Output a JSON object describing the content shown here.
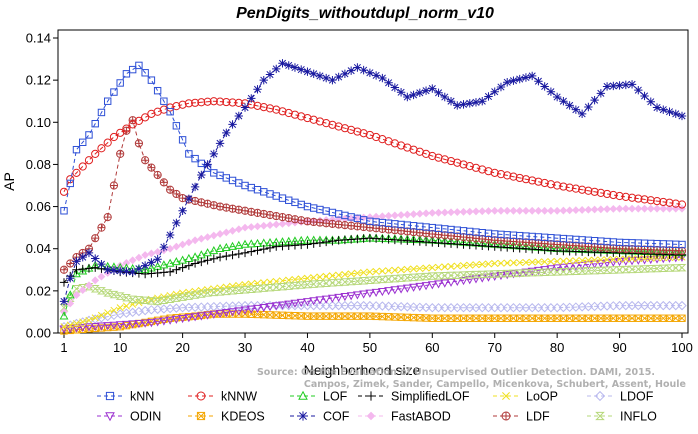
{
  "chart_data": {
    "type": "line",
    "title": "PenDigits_withoutdupl_norm_v10",
    "xlabel": "Neighborhood size",
    "ylabel": "AP",
    "xlim": [
      1,
      100
    ],
    "ylim": [
      0,
      0.14
    ],
    "x_ticks": [
      "1",
      "10",
      "20",
      "30",
      "40",
      "50",
      "60",
      "70",
      "80",
      "90",
      "100"
    ],
    "y_ticks": [
      "0.00",
      "0.02",
      "0.04",
      "0.06",
      "0.08",
      "0.10",
      "0.12",
      "0.14"
    ],
    "watermark": [
      "Source: On the Evaluation of Unsupervised Outlier Detection. DAMI, 2015.",
      "Campos, Zimek, Sander, Campello, Micenkova, Schubert, Assent, Houle"
    ],
    "series": [
      {
        "name": "kNN",
        "color": "#2d4fd6",
        "marker": "square",
        "dash": "4,3",
        "points": [
          [
            1,
            0.058
          ],
          [
            2,
            0.071
          ],
          [
            3,
            0.087
          ],
          [
            5,
            0.094
          ],
          [
            8,
            0.11
          ],
          [
            11,
            0.123
          ],
          [
            13,
            0.127
          ],
          [
            15,
            0.12
          ],
          [
            18,
            0.105
          ],
          [
            21,
            0.085
          ],
          [
            25,
            0.076
          ],
          [
            30,
            0.07
          ],
          [
            35,
            0.065
          ],
          [
            40,
            0.06
          ],
          [
            50,
            0.053
          ],
          [
            60,
            0.05
          ],
          [
            70,
            0.047
          ],
          [
            80,
            0.045
          ],
          [
            90,
            0.043
          ],
          [
            100,
            0.042
          ]
        ]
      },
      {
        "name": "kNNW",
        "color": "#e02020",
        "marker": "circle",
        "dash": "4,3",
        "points": [
          [
            1,
            0.067
          ],
          [
            2,
            0.073
          ],
          [
            4,
            0.079
          ],
          [
            6,
            0.085
          ],
          [
            9,
            0.093
          ],
          [
            12,
            0.099
          ],
          [
            15,
            0.104
          ],
          [
            18,
            0.107
          ],
          [
            21,
            0.109
          ],
          [
            25,
            0.11
          ],
          [
            30,
            0.109
          ],
          [
            35,
            0.106
          ],
          [
            40,
            0.102
          ],
          [
            50,
            0.094
          ],
          [
            60,
            0.084
          ],
          [
            70,
            0.076
          ],
          [
            80,
            0.07
          ],
          [
            90,
            0.065
          ],
          [
            100,
            0.061
          ]
        ]
      },
      {
        "name": "LOF",
        "color": "#22cc22",
        "marker": "triangle",
        "dash": "4,3",
        "points": [
          [
            1,
            0.008
          ],
          [
            3,
            0.028
          ],
          [
            6,
            0.032
          ],
          [
            10,
            0.031
          ],
          [
            14,
            0.03
          ],
          [
            18,
            0.033
          ],
          [
            22,
            0.036
          ],
          [
            26,
            0.04
          ],
          [
            30,
            0.042
          ],
          [
            35,
            0.043
          ],
          [
            40,
            0.044
          ],
          [
            45,
            0.044
          ],
          [
            50,
            0.045
          ],
          [
            60,
            0.044
          ],
          [
            70,
            0.042
          ],
          [
            80,
            0.04
          ],
          [
            90,
            0.039
          ],
          [
            100,
            0.038
          ]
        ]
      },
      {
        "name": "SimplifiedLOF",
        "color": "#000000",
        "marker": "plus",
        "dash": "4,3",
        "points": [
          [
            1,
            0.024
          ],
          [
            3,
            0.03
          ],
          [
            6,
            0.031
          ],
          [
            10,
            0.029
          ],
          [
            14,
            0.028
          ],
          [
            18,
            0.029
          ],
          [
            22,
            0.033
          ],
          [
            26,
            0.036
          ],
          [
            30,
            0.038
          ],
          [
            35,
            0.041
          ],
          [
            40,
            0.042
          ],
          [
            45,
            0.044
          ],
          [
            50,
            0.045
          ],
          [
            60,
            0.043
          ],
          [
            70,
            0.041
          ],
          [
            80,
            0.039
          ],
          [
            90,
            0.038
          ],
          [
            100,
            0.037
          ]
        ]
      },
      {
        "name": "LoOP",
        "color": "#f0e020",
        "marker": "cross",
        "dash": "4,3",
        "points": [
          [
            1,
            0.003
          ],
          [
            5,
            0.006
          ],
          [
            10,
            0.012
          ],
          [
            15,
            0.016
          ],
          [
            20,
            0.019
          ],
          [
            25,
            0.021
          ],
          [
            30,
            0.023
          ],
          [
            40,
            0.026
          ],
          [
            50,
            0.029
          ],
          [
            60,
            0.031
          ],
          [
            70,
            0.033
          ],
          [
            80,
            0.034
          ],
          [
            90,
            0.035
          ],
          [
            100,
            0.036
          ]
        ]
      },
      {
        "name": "LDOF",
        "color": "#b8b8ee",
        "marker": "diamond",
        "dash": "4,3",
        "points": [
          [
            1,
            0.003
          ],
          [
            5,
            0.006
          ],
          [
            10,
            0.009
          ],
          [
            15,
            0.011
          ],
          [
            20,
            0.012
          ],
          [
            30,
            0.013
          ],
          [
            40,
            0.013
          ],
          [
            50,
            0.013
          ],
          [
            60,
            0.012
          ],
          [
            70,
            0.012
          ],
          [
            80,
            0.012
          ],
          [
            90,
            0.013
          ],
          [
            100,
            0.013
          ]
        ]
      },
      {
        "name": "ODIN",
        "color": "#9b30d0",
        "marker": "triangle-down",
        "dash": "4,3",
        "points": [
          [
            1,
            0.002
          ],
          [
            5,
            0.003
          ],
          [
            10,
            0.004
          ],
          [
            15,
            0.005
          ],
          [
            20,
            0.007
          ],
          [
            25,
            0.009
          ],
          [
            30,
            0.011
          ],
          [
            40,
            0.015
          ],
          [
            50,
            0.019
          ],
          [
            60,
            0.023
          ],
          [
            70,
            0.027
          ],
          [
            80,
            0.031
          ],
          [
            90,
            0.034
          ],
          [
            100,
            0.036
          ]
        ]
      },
      {
        "name": "KDEOS",
        "color": "#f4a600",
        "marker": "square-x",
        "dash": "4,3",
        "points": [
          [
            1,
            0.001
          ],
          [
            5,
            0.002
          ],
          [
            10,
            0.003
          ],
          [
            14,
            0.005
          ],
          [
            18,
            0.007
          ],
          [
            22,
            0.008
          ],
          [
            25,
            0.009
          ],
          [
            30,
            0.009
          ],
          [
            40,
            0.008
          ],
          [
            50,
            0.008
          ],
          [
            60,
            0.007
          ],
          [
            70,
            0.007
          ],
          [
            80,
            0.007
          ],
          [
            90,
            0.007
          ],
          [
            100,
            0.007
          ]
        ]
      },
      {
        "name": "COF",
        "color": "#1a1aa0",
        "marker": "asterisk",
        "dash": "4,3",
        "points": [
          [
            1,
            0.015
          ],
          [
            2,
            0.026
          ],
          [
            3,
            0.034
          ],
          [
            5,
            0.038
          ],
          [
            8,
            0.03
          ],
          [
            12,
            0.029
          ],
          [
            16,
            0.035
          ],
          [
            20,
            0.058
          ],
          [
            23,
            0.075
          ],
          [
            27,
            0.095
          ],
          [
            30,
            0.107
          ],
          [
            33,
            0.12
          ],
          [
            36,
            0.128
          ],
          [
            40,
            0.124
          ],
          [
            44,
            0.12
          ],
          [
            48,
            0.126
          ],
          [
            52,
            0.121
          ],
          [
            56,
            0.112
          ],
          [
            60,
            0.116
          ],
          [
            64,
            0.108
          ],
          [
            68,
            0.11
          ],
          [
            72,
            0.119
          ],
          [
            76,
            0.122
          ],
          [
            80,
            0.112
          ],
          [
            84,
            0.104
          ],
          [
            88,
            0.117
          ],
          [
            92,
            0.118
          ],
          [
            96,
            0.107
          ],
          [
            100,
            0.103
          ]
        ]
      },
      {
        "name": "FastABOD",
        "color": "#f4b8ee",
        "marker": "diamond-filled",
        "dash": "4,3",
        "points": [
          [
            1,
            0.01
          ],
          [
            3,
            0.018
          ],
          [
            6,
            0.025
          ],
          [
            10,
            0.032
          ],
          [
            14,
            0.037
          ],
          [
            18,
            0.04
          ],
          [
            22,
            0.044
          ],
          [
            26,
            0.047
          ],
          [
            30,
            0.05
          ],
          [
            40,
            0.053
          ],
          [
            50,
            0.055
          ],
          [
            60,
            0.057
          ],
          [
            70,
            0.058
          ],
          [
            80,
            0.058
          ],
          [
            90,
            0.059
          ],
          [
            100,
            0.059
          ]
        ]
      },
      {
        "name": "LDF",
        "color": "#b03a3a",
        "marker": "circle-plus",
        "dash": "4,3",
        "points": [
          [
            1,
            0.03
          ],
          [
            3,
            0.036
          ],
          [
            5,
            0.04
          ],
          [
            8,
            0.055
          ],
          [
            10,
            0.085
          ],
          [
            11,
            0.096
          ],
          [
            12,
            0.101
          ],
          [
            13,
            0.09
          ],
          [
            14,
            0.082
          ],
          [
            16,
            0.075
          ],
          [
            18,
            0.068
          ],
          [
            20,
            0.064
          ],
          [
            23,
            0.062
          ],
          [
            26,
            0.06
          ],
          [
            30,
            0.058
          ],
          [
            40,
            0.053
          ],
          [
            50,
            0.05
          ],
          [
            60,
            0.047
          ],
          [
            70,
            0.044
          ],
          [
            80,
            0.042
          ],
          [
            90,
            0.04
          ],
          [
            100,
            0.039
          ]
        ]
      },
      {
        "name": "INFLO",
        "color": "#b6d87a",
        "marker": "hourglass",
        "dash": "4,3",
        "points": [
          [
            1,
            0.012
          ],
          [
            3,
            0.021
          ],
          [
            5,
            0.022
          ],
          [
            8,
            0.019
          ],
          [
            12,
            0.016
          ],
          [
            16,
            0.015
          ],
          [
            20,
            0.017
          ],
          [
            24,
            0.019
          ],
          [
            28,
            0.02
          ],
          [
            32,
            0.021
          ],
          [
            40,
            0.023
          ],
          [
            50,
            0.025
          ],
          [
            60,
            0.027
          ],
          [
            70,
            0.028
          ],
          [
            80,
            0.029
          ],
          [
            90,
            0.03
          ],
          [
            100,
            0.031
          ]
        ]
      }
    ]
  }
}
